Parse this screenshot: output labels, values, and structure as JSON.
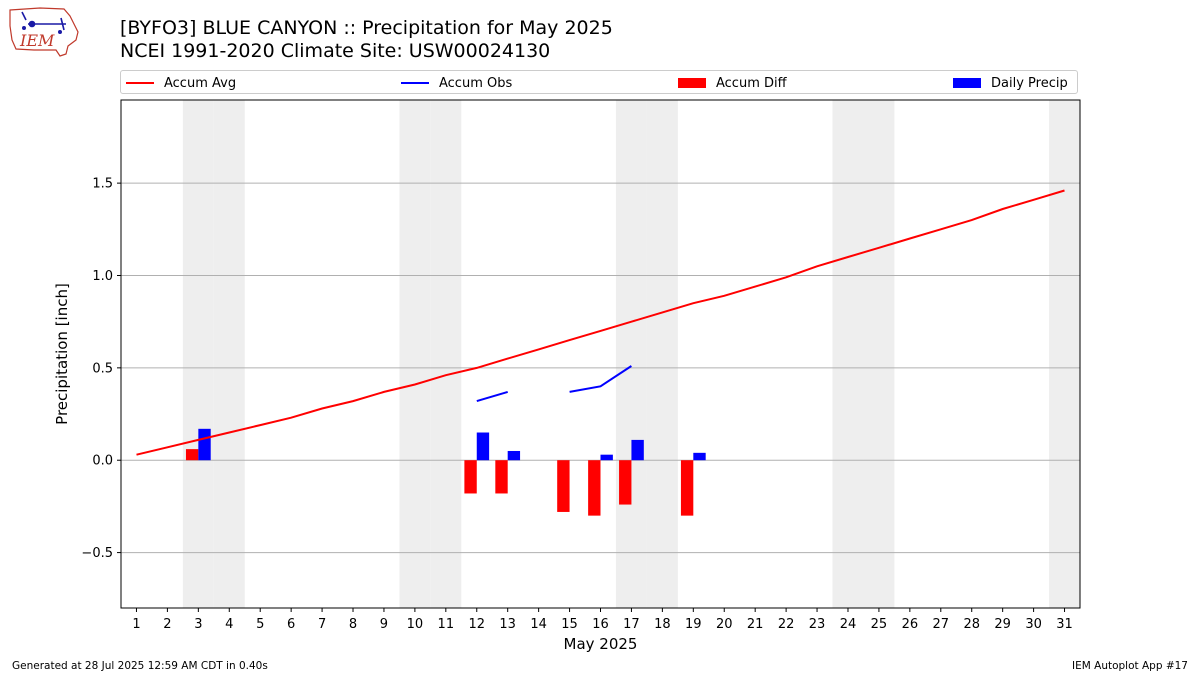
{
  "header": {
    "logo_text": "IEM",
    "title": "[BYFO3] BLUE CANYON :: Precipitation for May 2025",
    "subtitle": "NCEI 1991-2020 Climate Site: USW00024130"
  },
  "legend": {
    "placement": "top",
    "items": [
      {
        "label": "Accum Avg",
        "color": "#ff0000",
        "kind": "line"
      },
      {
        "label": "Accum Obs",
        "color": "#0000ff",
        "kind": "line"
      },
      {
        "label": "Accum Diff",
        "color": "#ff0000",
        "kind": "box"
      },
      {
        "label": "Daily Precip",
        "color": "#0000ff",
        "kind": "box"
      }
    ]
  },
  "chart_data": {
    "type": "bar",
    "xlabel": "May 2025",
    "ylabel": "Precipitation [inch]",
    "xlim": [
      0.5,
      31.5
    ],
    "ylim": [
      -0.8,
      1.95
    ],
    "grid": true,
    "x": [
      1,
      2,
      3,
      4,
      5,
      6,
      7,
      8,
      9,
      10,
      11,
      12,
      13,
      14,
      15,
      16,
      17,
      18,
      19,
      20,
      21,
      22,
      23,
      24,
      25,
      26,
      27,
      28,
      29,
      30,
      31
    ],
    "x_tick_labels": [
      "1",
      "2",
      "3",
      "4",
      "5",
      "6",
      "7",
      "8",
      "9",
      "10",
      "11",
      "12",
      "13",
      "14",
      "15",
      "16",
      "17",
      "18",
      "19",
      "20",
      "21",
      "22",
      "23",
      "24",
      "25",
      "26",
      "27",
      "28",
      "29",
      "30",
      "31"
    ],
    "y_ticks": [
      -0.5,
      0.0,
      0.5,
      1.0,
      1.5
    ],
    "y_tick_labels": [
      "−0.5",
      "0.0",
      "0.5",
      "1.0",
      "1.5"
    ],
    "weekend_days": [
      3,
      4,
      10,
      11,
      17,
      18,
      24,
      25,
      31
    ],
    "shading_color": "#eeeeee",
    "series": [
      {
        "name": "Accum Avg",
        "type": "line",
        "color": "#ff0000",
        "values": [
          0.03,
          0.07,
          0.11,
          0.15,
          0.19,
          0.23,
          0.28,
          0.32,
          0.37,
          0.41,
          0.46,
          0.5,
          0.55,
          0.6,
          0.65,
          0.7,
          0.75,
          0.8,
          0.85,
          0.89,
          0.94,
          0.99,
          1.05,
          1.1,
          1.15,
          1.2,
          1.25,
          1.3,
          1.36,
          1.41,
          1.46
        ]
      },
      {
        "name": "Accum Obs",
        "type": "line",
        "color": "#0000ff",
        "values": [
          null,
          null,
          null,
          null,
          null,
          null,
          null,
          null,
          null,
          null,
          null,
          0.32,
          0.37,
          null,
          0.37,
          0.4,
          0.51,
          null,
          null,
          null,
          null,
          null,
          null,
          null,
          null,
          null,
          null,
          null,
          null,
          null,
          null
        ]
      },
      {
        "name": "Accum Diff",
        "type": "bar",
        "color": "#ff0000",
        "values": [
          null,
          null,
          0.06,
          null,
          null,
          null,
          null,
          null,
          null,
          null,
          null,
          -0.18,
          -0.18,
          null,
          -0.28,
          -0.3,
          -0.24,
          null,
          -0.3,
          null,
          null,
          null,
          null,
          null,
          null,
          null,
          null,
          null,
          null,
          null,
          null
        ]
      },
      {
        "name": "Daily Precip",
        "type": "bar",
        "color": "#0000ff",
        "values": [
          null,
          null,
          0.17,
          null,
          null,
          null,
          null,
          null,
          null,
          null,
          null,
          0.15,
          0.05,
          null,
          null,
          0.03,
          0.11,
          null,
          0.04,
          null,
          null,
          null,
          null,
          null,
          null,
          null,
          null,
          null,
          null,
          null,
          null
        ]
      }
    ]
  },
  "footer": {
    "generated": "Generated at 28 Jul 2025 12:59 AM CDT in 0.40s",
    "app": "IEM Autoplot App #17"
  }
}
